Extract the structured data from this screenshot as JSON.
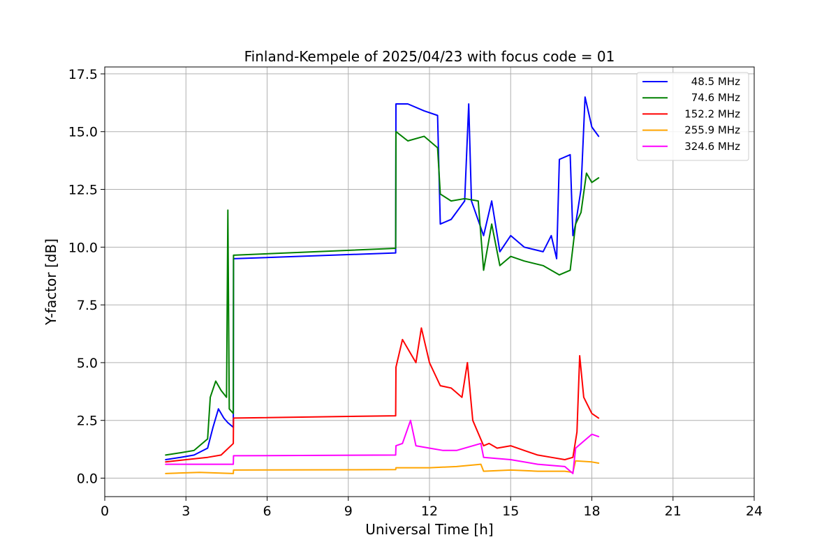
{
  "chart_data": {
    "type": "line",
    "title": "Finland-Kempele of 2025/04/23 with focus code = 01",
    "xlabel": "Universal Time [h]",
    "ylabel": "Y-factor [dB]",
    "xlim": [
      0,
      24
    ],
    "ylim": [
      -0.8,
      17.8
    ],
    "xticks": [
      0,
      3,
      6,
      9,
      12,
      15,
      18,
      21,
      24
    ],
    "xtick_labels": [
      "0",
      "3",
      "6",
      "9",
      "12",
      "15",
      "18",
      "21",
      "24"
    ],
    "yticks": [
      0,
      2.5,
      5,
      7.5,
      10,
      12.5,
      15,
      17.5
    ],
    "ytick_labels": [
      "0.0",
      "2.5",
      "5.0",
      "7.5",
      "10.0",
      "12.5",
      "15.0",
      "17.5"
    ],
    "grid": true,
    "legend_position": "top-right",
    "series": [
      {
        "name": "48.5 MHz",
        "color": "#0000ff",
        "x": [
          2.25,
          2.8,
          3.3,
          3.8,
          4.0,
          4.2,
          4.4,
          4.55,
          4.75,
          4.76,
          10.75,
          10.76,
          11.2,
          11.8,
          12.3,
          12.4,
          12.8,
          13.3,
          13.45,
          13.55,
          14.0,
          14.3,
          14.6,
          15.0,
          15.5,
          16.2,
          16.5,
          16.7,
          16.8,
          17.2,
          17.3,
          17.4,
          17.6,
          17.75,
          18.0,
          18.25
        ],
        "y": [
          0.8,
          0.9,
          1.0,
          1.3,
          2.2,
          3.0,
          2.6,
          2.4,
          2.2,
          9.5,
          9.75,
          16.2,
          16.2,
          15.9,
          15.7,
          11.0,
          11.2,
          12.0,
          16.2,
          12.0,
          10.5,
          12.0,
          9.8,
          10.5,
          10.0,
          9.8,
          10.5,
          9.5,
          13.8,
          14.0,
          10.5,
          11.0,
          12.5,
          16.5,
          15.2,
          14.8
        ]
      },
      {
        "name": "74.6 MHz",
        "color": "#008000",
        "x": [
          2.25,
          2.8,
          3.3,
          3.8,
          3.9,
          4.1,
          4.3,
          4.5,
          4.55,
          4.6,
          4.75,
          4.76,
          10.75,
          10.76,
          11.2,
          11.8,
          12.3,
          12.4,
          12.8,
          13.3,
          13.8,
          14.0,
          14.3,
          14.6,
          15.0,
          15.5,
          16.2,
          16.8,
          17.2,
          17.4,
          17.6,
          17.8,
          18.0,
          18.25
        ],
        "y": [
          1.0,
          1.1,
          1.2,
          1.7,
          3.5,
          4.2,
          3.8,
          3.5,
          11.6,
          3.0,
          2.8,
          9.65,
          9.95,
          15.0,
          14.6,
          14.8,
          14.3,
          12.3,
          12.0,
          12.1,
          12.0,
          9.0,
          11.0,
          9.2,
          9.6,
          9.4,
          9.2,
          8.8,
          9.0,
          11.0,
          11.5,
          13.2,
          12.8,
          13.0
        ]
      },
      {
        "name": "152.2 MHz",
        "color": "#ff0000",
        "x": [
          2.25,
          3.0,
          3.8,
          4.3,
          4.75,
          4.76,
          10.75,
          10.76,
          11.0,
          11.5,
          11.7,
          12.0,
          12.4,
          12.8,
          13.2,
          13.4,
          13.6,
          14.0,
          14.2,
          14.5,
          15.0,
          15.5,
          16.0,
          16.5,
          17.0,
          17.3,
          17.45,
          17.55,
          17.7,
          18.0,
          18.25
        ],
        "y": [
          0.7,
          0.8,
          0.9,
          1.0,
          1.5,
          2.6,
          2.7,
          4.8,
          6.0,
          5.0,
          6.5,
          5.0,
          4.0,
          3.9,
          3.5,
          5.0,
          2.5,
          1.4,
          1.5,
          1.3,
          1.4,
          1.2,
          1.0,
          0.9,
          0.8,
          0.9,
          2.0,
          5.3,
          3.5,
          2.8,
          2.6
        ]
      },
      {
        "name": "255.9 MHz",
        "color": "#ffa500",
        "x": [
          2.25,
          3.5,
          4.75,
          4.76,
          10.75,
          10.76,
          12.0,
          13.0,
          13.9,
          14.0,
          15.0,
          16.0,
          17.0,
          17.3,
          17.4,
          18.0,
          18.25
        ],
        "y": [
          0.2,
          0.25,
          0.2,
          0.35,
          0.37,
          0.45,
          0.45,
          0.5,
          0.6,
          0.3,
          0.35,
          0.3,
          0.3,
          0.25,
          0.75,
          0.7,
          0.65
        ]
      },
      {
        "name": "324.6 MHz",
        "color": "#ff00ff",
        "x": [
          2.25,
          3.5,
          4.75,
          4.76,
          10.75,
          10.76,
          11.0,
          11.3,
          11.5,
          12.0,
          12.5,
          13.0,
          13.9,
          14.0,
          15.0,
          16.0,
          17.0,
          17.3,
          17.4,
          17.7,
          18.0,
          18.25
        ],
        "y": [
          0.6,
          0.6,
          0.6,
          0.97,
          1.0,
          1.4,
          1.5,
          2.5,
          1.4,
          1.3,
          1.2,
          1.2,
          1.5,
          0.9,
          0.8,
          0.6,
          0.5,
          0.2,
          1.3,
          1.6,
          1.9,
          1.8
        ]
      }
    ]
  }
}
